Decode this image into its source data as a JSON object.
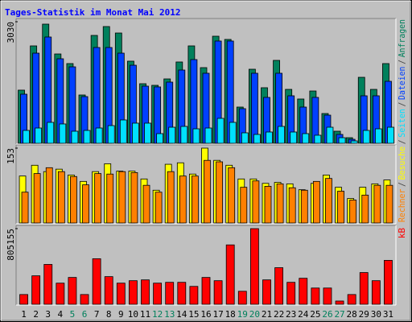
{
  "title": "Tages-Statistik im Monat Mai 2012",
  "legend_separator": "/",
  "x_label_colors": [
    "#000000",
    "#000000",
    "#000000",
    "#000000",
    "#00805c",
    "#00805c",
    "#000000",
    "#000000",
    "#000000",
    "#000000",
    "#000000",
    "#00805c",
    "#00805c",
    "#000000",
    "#000000",
    "#000000",
    "#000000",
    "#000000",
    "#00805c",
    "#00805c",
    "#000000",
    "#000000",
    "#000000",
    "#000000",
    "#000000",
    "#00805c",
    "#00805c",
    "#000000",
    "#000000",
    "#000000",
    "#000000"
  ],
  "chart_data": [
    {
      "type": "bar",
      "ylim": [
        0,
        3030
      ],
      "yticks": [
        3030
      ],
      "series": [
        {
          "name": "Anfragen",
          "color": "#00805c",
          "values": [
            1325,
            2428,
            2970,
            2227,
            1987,
            1204,
            2689,
            2910,
            2749,
            2047,
            1485,
            1445,
            1605,
            2027,
            2428,
            1886,
            2669,
            2589,
            903,
            1846,
            1385,
            2067,
            1344,
            1104,
            1304,
            742,
            301,
            140,
            1645,
            1344,
            1987
          ]
        },
        {
          "name": "Dateien",
          "color": "#0040ff",
          "values": [
            1224,
            2247,
            2649,
            2107,
            1906,
            1164,
            2388,
            2388,
            2247,
            1946,
            1425,
            1405,
            1525,
            1826,
            2087,
            1746,
            2549,
            2549,
            863,
            1746,
            1144,
            1746,
            1184,
            903,
            1144,
            702,
            221,
            100,
            1184,
            1184,
            1545
          ]
        },
        {
          "name": "Seiten",
          "color": "#00e0ff",
          "values": [
            321,
            381,
            522,
            482,
            301,
            321,
            381,
            441,
            582,
            502,
            502,
            241,
            401,
            421,
            361,
            381,
            622,
            522,
            261,
            221,
            281,
            421,
            281,
            241,
            201,
            401,
            140,
            60,
            321,
            361,
            401
          ]
        }
      ]
    },
    {
      "type": "bar",
      "ylim": [
        0,
        153
      ],
      "yticks": [
        153
      ],
      "series": [
        {
          "name": "Besuche",
          "color": "#ffff00",
          "values": [
            96,
            118,
            105,
            110,
            98,
            85,
            105,
            121,
            106,
            106,
            90,
            67,
            120,
            123,
            100,
            153,
            128,
            118,
            90,
            90,
            81,
            83,
            80,
            68,
            81,
            98,
            73,
            50,
            73,
            80,
            88
          ]
        },
        {
          "name": "Rechner",
          "color": "#ff8000",
          "values": [
            63,
            101,
            113,
            105,
            95,
            78,
            101,
            100,
            105,
            103,
            77,
            63,
            105,
            96,
            96,
            128,
            125,
            113,
            73,
            86,
            75,
            80,
            72,
            67,
            85,
            91,
            65,
            47,
            57,
            77,
            77
          ]
        }
      ]
    },
    {
      "type": "bar",
      "ylim": [
        0,
        805155
      ],
      "yticks": [
        805155
      ],
      "categories": [
        "1",
        "2",
        "3",
        "4",
        "5",
        "6",
        "7",
        "8",
        "9",
        "10",
        "11",
        "12",
        "13",
        "14",
        "15",
        "16",
        "17",
        "18",
        "19",
        "20",
        "21",
        "22",
        "23",
        "24",
        "25",
        "26",
        "27",
        "28",
        "29",
        "30",
        "31"
      ],
      "series": [
        {
          "name": "kB",
          "color": "#ff0000",
          "values": [
            103896,
            303030,
            424242,
            225108,
            285714,
            103896,
            484848,
            294372,
            225108,
            251082,
            259740,
            225108,
            233766,
            233766,
            190476,
            285714,
            251082,
            632034,
            138528,
            805155,
            259740,
            389610,
            233766,
            277056,
            173160,
            173160,
            34632,
            103896,
            337662,
            251082,
            467532
          ]
        }
      ]
    }
  ]
}
